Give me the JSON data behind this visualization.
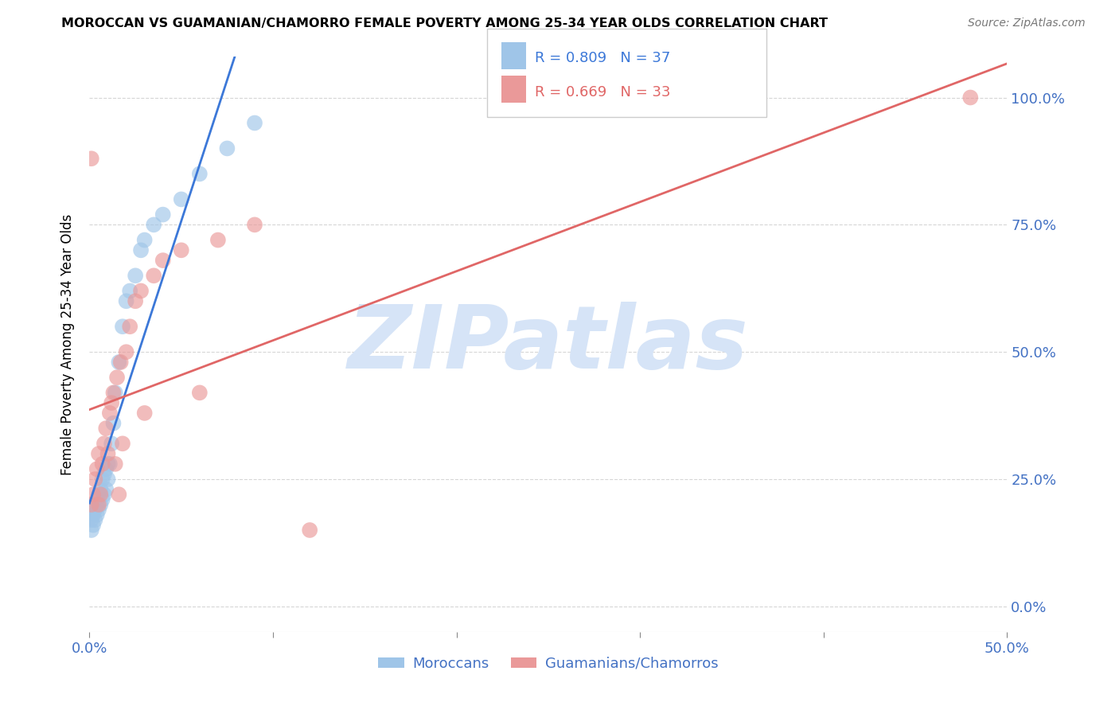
{
  "title": "MOROCCAN VS GUAMANIAN/CHAMORRO FEMALE POVERTY AMONG 25-34 YEAR OLDS CORRELATION CHART",
  "source": "Source: ZipAtlas.com",
  "xlabel_blue": "Moroccans",
  "xlabel_pink": "Guamanians/Chamorros",
  "ylabel": "Female Poverty Among 25-34 Year Olds",
  "xlim": [
    0.0,
    0.5
  ],
  "ylim": [
    -0.05,
    1.08
  ],
  "blue_R": 0.809,
  "blue_N": 37,
  "pink_R": 0.669,
  "pink_N": 33,
  "blue_color": "#9fc5e8",
  "pink_color": "#ea9999",
  "blue_line_color": "#3c78d8",
  "pink_line_color": "#e06666",
  "watermark_text": "ZIPatlas",
  "watermark_color": "#d6e4f7",
  "background_color": "#ffffff",
  "grid_color": "#cccccc",
  "tick_color": "#4472c4",
  "blue_x": [
    0.001,
    0.001,
    0.002,
    0.002,
    0.003,
    0.003,
    0.004,
    0.004,
    0.005,
    0.005,
    0.006,
    0.006,
    0.007,
    0.007,
    0.008,
    0.008,
    0.009,
    0.009,
    0.01,
    0.01,
    0.011,
    0.012,
    0.013,
    0.014,
    0.016,
    0.018,
    0.02,
    0.022,
    0.025,
    0.028,
    0.03,
    0.035,
    0.04,
    0.05,
    0.06,
    0.075,
    0.09
  ],
  "blue_y": [
    0.15,
    0.17,
    0.16,
    0.18,
    0.17,
    0.19,
    0.18,
    0.2,
    0.19,
    0.22,
    0.2,
    0.23,
    0.21,
    0.25,
    0.22,
    0.26,
    0.23,
    0.27,
    0.25,
    0.28,
    0.28,
    0.32,
    0.36,
    0.42,
    0.48,
    0.55,
    0.6,
    0.62,
    0.65,
    0.7,
    0.72,
    0.75,
    0.77,
    0.8,
    0.85,
    0.9,
    0.95
  ],
  "pink_x": [
    0.001,
    0.001,
    0.002,
    0.003,
    0.004,
    0.005,
    0.005,
    0.006,
    0.007,
    0.008,
    0.009,
    0.01,
    0.011,
    0.012,
    0.013,
    0.014,
    0.015,
    0.016,
    0.017,
    0.018,
    0.02,
    0.022,
    0.025,
    0.028,
    0.03,
    0.035,
    0.04,
    0.05,
    0.06,
    0.07,
    0.09,
    0.12,
    0.48
  ],
  "pink_y": [
    0.88,
    0.2,
    0.22,
    0.25,
    0.27,
    0.2,
    0.3,
    0.22,
    0.28,
    0.32,
    0.35,
    0.3,
    0.38,
    0.4,
    0.42,
    0.28,
    0.45,
    0.22,
    0.48,
    0.32,
    0.5,
    0.55,
    0.6,
    0.62,
    0.38,
    0.65,
    0.68,
    0.7,
    0.42,
    0.72,
    0.75,
    0.15,
    1.0
  ]
}
